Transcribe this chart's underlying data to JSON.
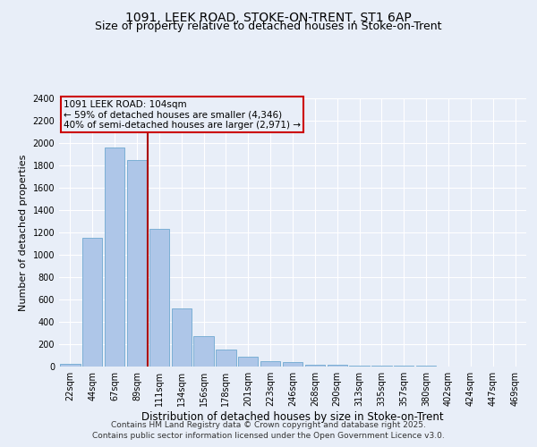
{
  "title1": "1091, LEEK ROAD, STOKE-ON-TRENT, ST1 6AP",
  "title2": "Size of property relative to detached houses in Stoke-on-Trent",
  "xlabel": "Distribution of detached houses by size in Stoke-on-Trent",
  "ylabel": "Number of detached properties",
  "categories": [
    "22sqm",
    "44sqm",
    "67sqm",
    "89sqm",
    "111sqm",
    "134sqm",
    "156sqm",
    "178sqm",
    "201sqm",
    "223sqm",
    "246sqm",
    "268sqm",
    "290sqm",
    "313sqm",
    "335sqm",
    "357sqm",
    "380sqm",
    "402sqm",
    "424sqm",
    "447sqm",
    "469sqm"
  ],
  "values": [
    25,
    1150,
    1960,
    1850,
    1230,
    520,
    275,
    155,
    90,
    50,
    40,
    20,
    15,
    10,
    8,
    6,
    5,
    4,
    3,
    3,
    2
  ],
  "bar_color": "#aec6e8",
  "bar_edgecolor": "#6ea8d0",
  "vline_color": "#aa0000",
  "annotation_title": "1091 LEEK ROAD: 104sqm",
  "annotation_line1": "← 59% of detached houses are smaller (4,346)",
  "annotation_line2": "40% of semi-detached houses are larger (2,971) →",
  "annotation_box_color": "#cc0000",
  "ylim": [
    0,
    2400
  ],
  "yticks": [
    0,
    200,
    400,
    600,
    800,
    1000,
    1200,
    1400,
    1600,
    1800,
    2000,
    2200,
    2400
  ],
  "footer1": "Contains HM Land Registry data © Crown copyright and database right 2025.",
  "footer2": "Contains public sector information licensed under the Open Government Licence v3.0.",
  "bg_color": "#e8eef8",
  "plot_bg_color": "#e8eef8",
  "title_fontsize": 10,
  "subtitle_fontsize": 9,
  "tick_fontsize": 7,
  "xlabel_fontsize": 8.5,
  "ylabel_fontsize": 8,
  "annotation_fontsize": 7.5,
  "footer_fontsize": 6.5
}
